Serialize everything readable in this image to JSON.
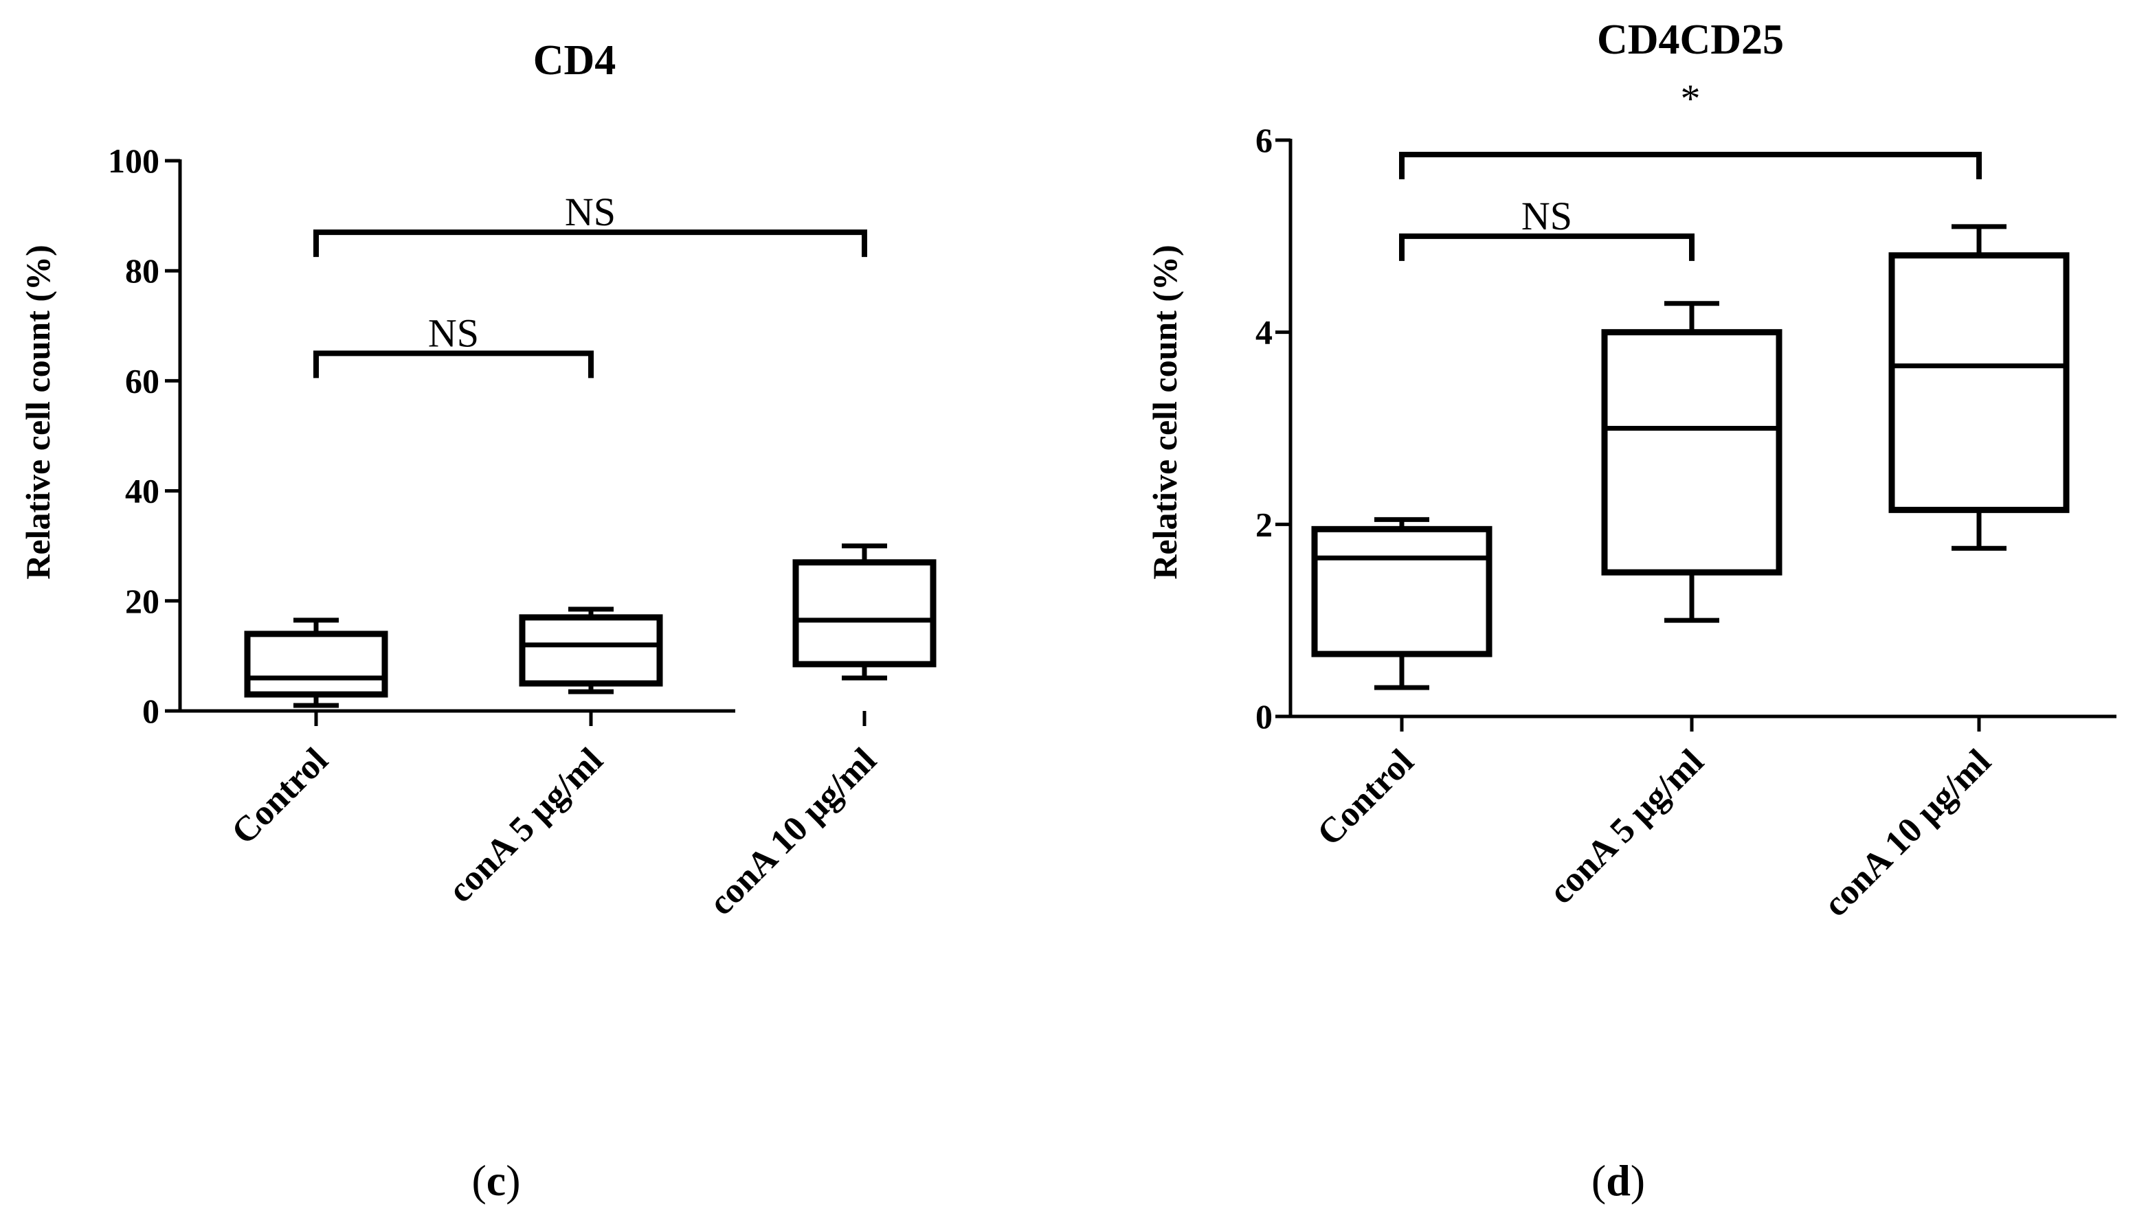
{
  "colors": {
    "ink": "#000000",
    "background": "#ffffff"
  },
  "chart_data": [
    {
      "type": "box",
      "panel_label": "c",
      "title": "CD4",
      "xlabel": "",
      "ylabel": "Relative cell count (%)",
      "ylim": [
        0,
        100
      ],
      "yticks": [
        0,
        20,
        40,
        60,
        80,
        100
      ],
      "categories": [
        "Control",
        "conA 5 μg/ml",
        "conA 10 μg/ml"
      ],
      "boxes": [
        {
          "min": 1,
          "q1": 3,
          "median": 6,
          "q3": 14,
          "max": 16.5
        },
        {
          "min": 3.5,
          "q1": 5,
          "median": 12,
          "q3": 17,
          "max": 18.5
        },
        {
          "min": 6,
          "q1": 8.5,
          "median": 16.5,
          "q3": 27,
          "max": 30
        }
      ],
      "annotations": [
        {
          "from": 0,
          "to": 1,
          "y": 65,
          "text": "NS"
        },
        {
          "from": 0,
          "to": 2,
          "y": 87,
          "text": "NS"
        }
      ]
    },
    {
      "type": "box",
      "panel_label": "d",
      "title": "CD4CD25",
      "xlabel": "",
      "ylabel": "Relative cell count (%)",
      "ylim": [
        0,
        6
      ],
      "yticks": [
        0,
        2,
        4,
        6
      ],
      "categories": [
        "Control",
        "conA 5 μg/ml",
        "conA 10 μg/ml"
      ],
      "boxes": [
        {
          "min": 0.3,
          "q1": 0.65,
          "median": 1.65,
          "q3": 1.95,
          "max": 2.05
        },
        {
          "min": 1.0,
          "q1": 1.5,
          "median": 3.0,
          "q3": 4.0,
          "max": 4.3
        },
        {
          "min": 1.75,
          "q1": 2.15,
          "median": 3.65,
          "q3": 4.8,
          "max": 5.1
        }
      ],
      "annotations": [
        {
          "from": 0,
          "to": 1,
          "y": 5.0,
          "text": "NS"
        },
        {
          "from": 0,
          "to": 2,
          "y": 5.85,
          "text": "*"
        }
      ]
    }
  ]
}
